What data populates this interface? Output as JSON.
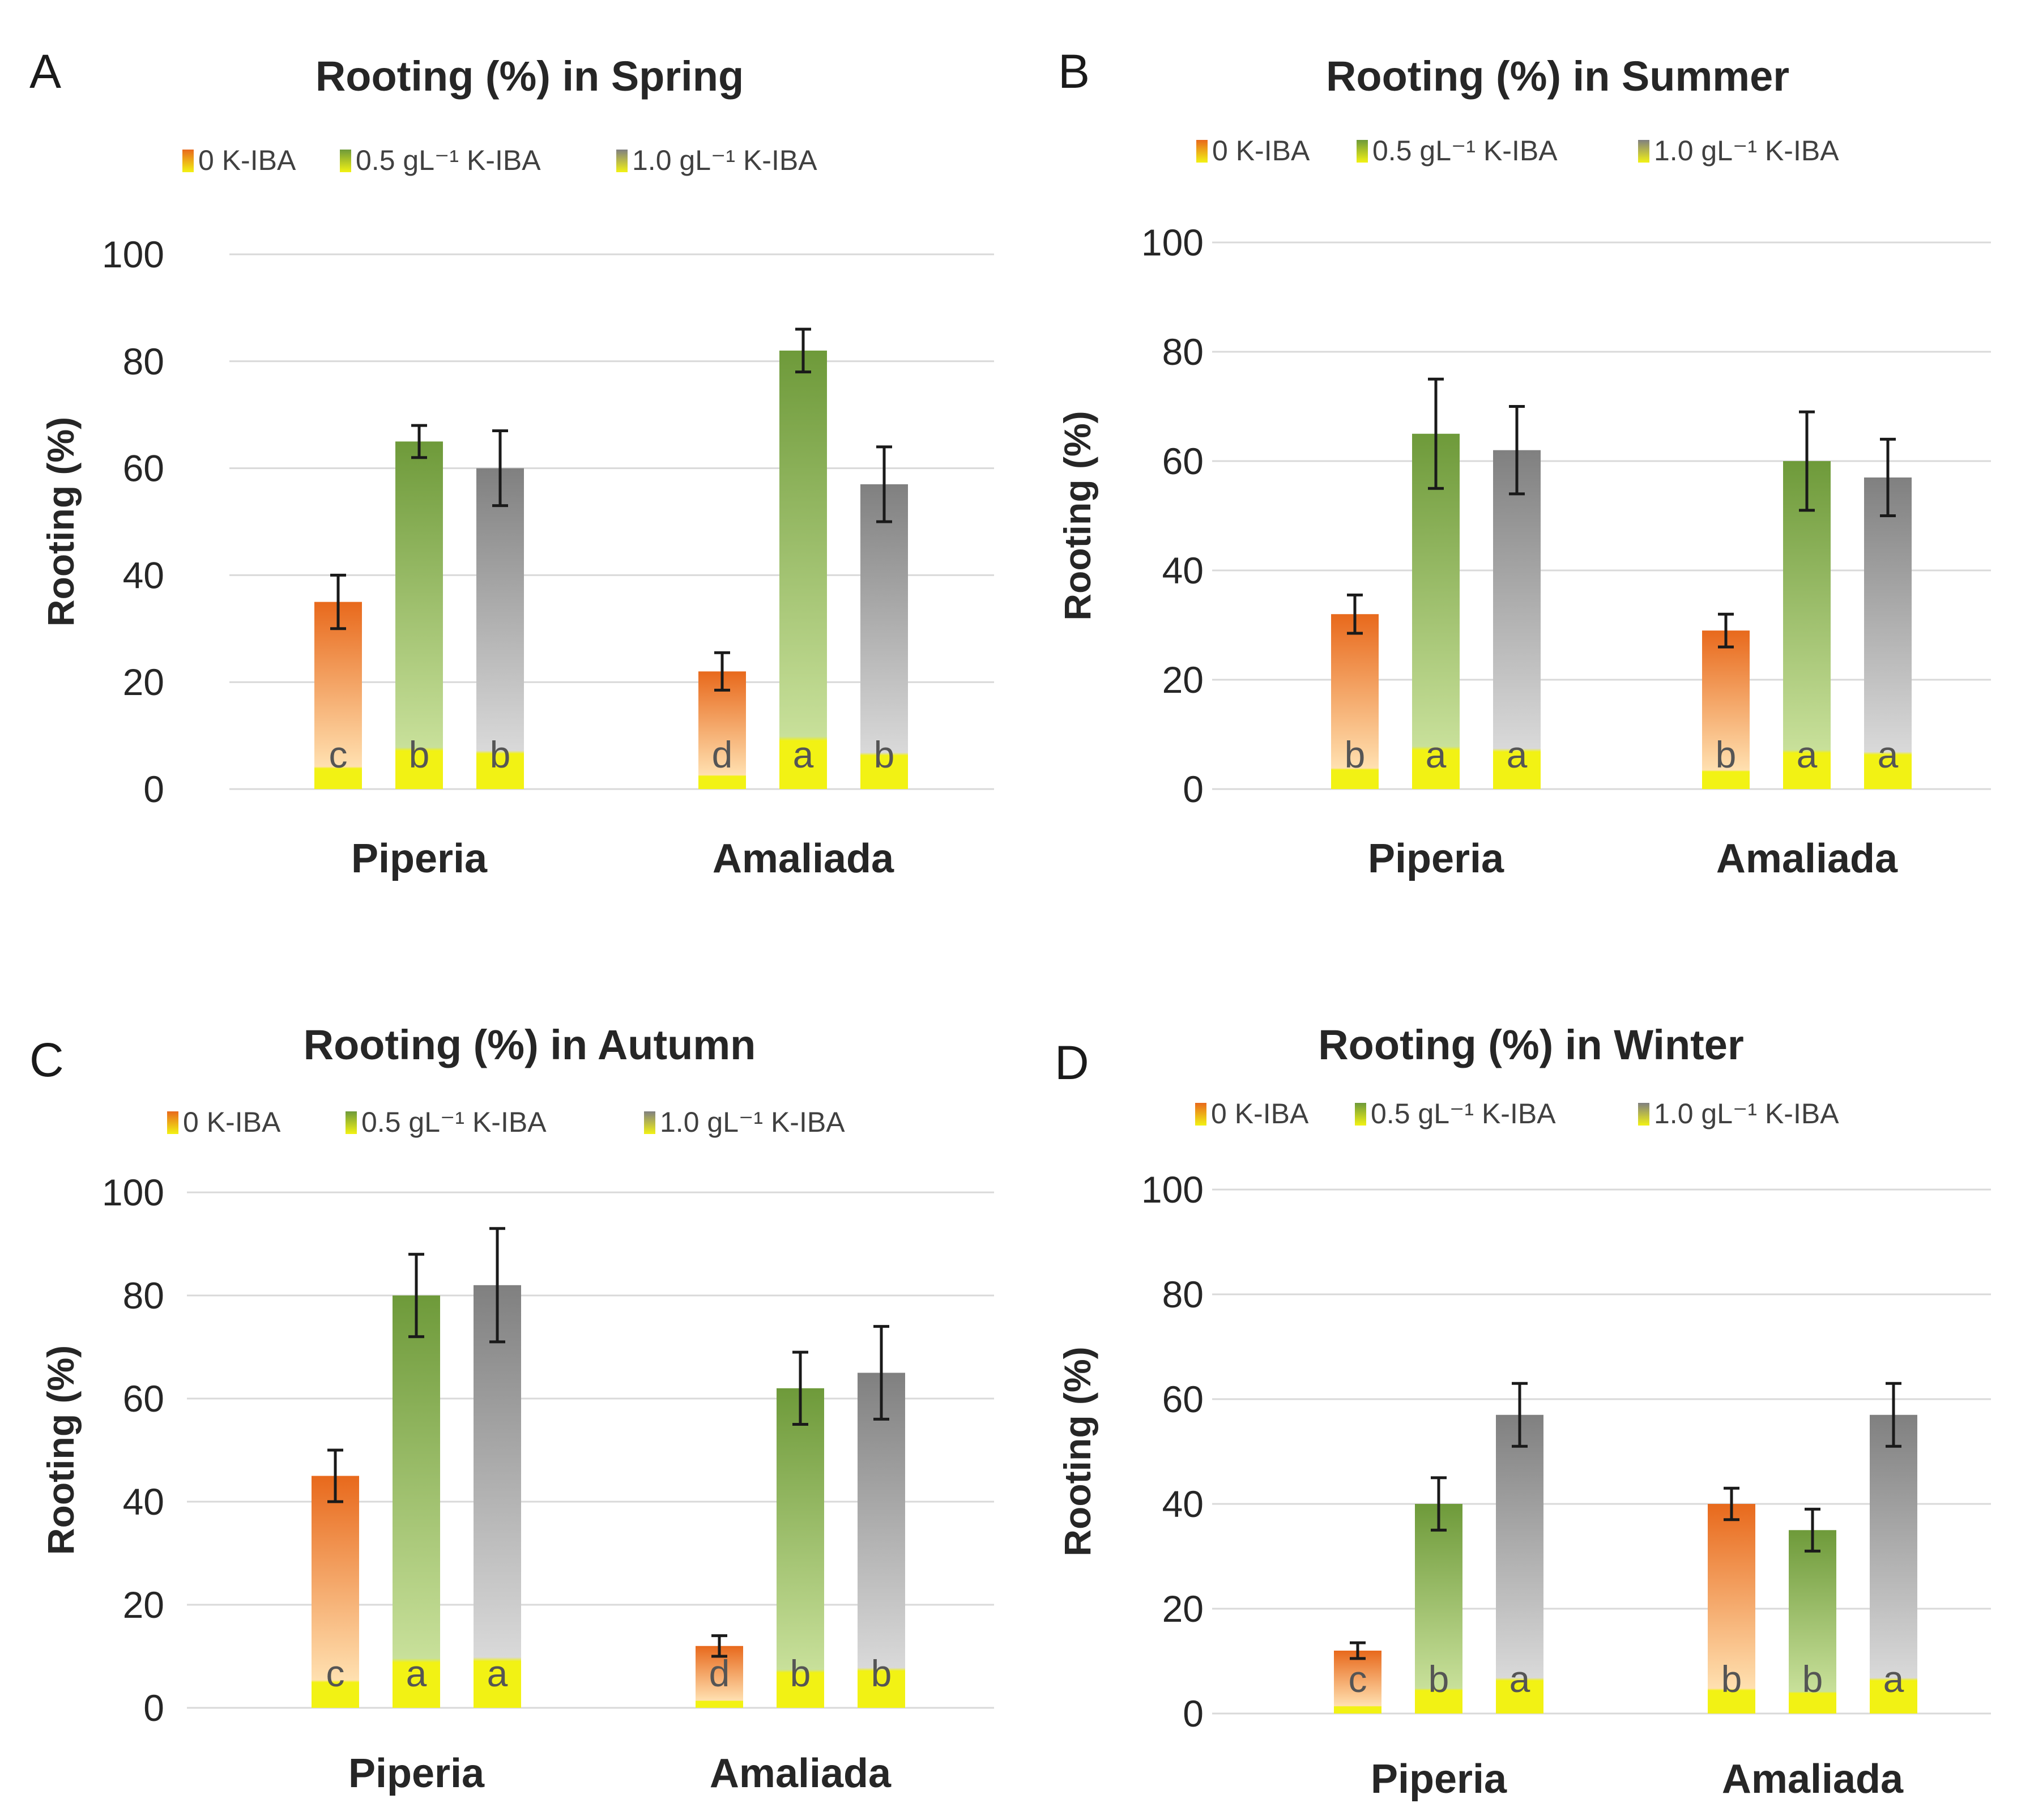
{
  "colors": {
    "orange_top": "#E8691C",
    "orange_bottom": "#FFE0B0",
    "green_top": "#6E9A3A",
    "green_bottom": "#C8E09A",
    "grey_top": "#808080",
    "grey_bottom": "#D9D9D9",
    "base_yellow": "#F2F214",
    "gridline": "#D9D9D9"
  },
  "chart_data": [
    {
      "panel": "A",
      "type": "bar",
      "title": "Rooting (%) in Spring",
      "ylabel": "Rooting (%)",
      "xlabel": "",
      "ylim": [
        0,
        100
      ],
      "yticks": [
        "0",
        "20",
        "40",
        "60",
        "80",
        "100"
      ],
      "grid": true,
      "legend_position": "top",
      "categories": [
        "Piperia",
        "Amaliada"
      ],
      "series": [
        {
          "name": "0 K-IBA",
          "color": "orange",
          "values": [
            35,
            22
          ],
          "errors": [
            5,
            3.5
          ],
          "letters": [
            "c",
            "d"
          ]
        },
        {
          "name": "0.5 gL⁻¹ K-IBA",
          "color": "green",
          "values": [
            65,
            82
          ],
          "errors": [
            3,
            4
          ],
          "letters": [
            "b",
            "a"
          ]
        },
        {
          "name": "1.0 gL⁻¹ K-IBA",
          "color": "grey",
          "values": [
            60,
            57
          ],
          "errors": [
            7,
            7
          ],
          "letters": [
            "b",
            "b"
          ]
        }
      ]
    },
    {
      "panel": "B",
      "type": "bar",
      "title": "Rooting (%) in Summer",
      "ylabel": "Rooting (%)",
      "xlabel": "",
      "ylim": [
        0,
        100
      ],
      "yticks": [
        "0",
        "20",
        "40",
        "60",
        "80",
        "100"
      ],
      "grid": true,
      "legend_position": "top",
      "categories": [
        "Piperia",
        "Amaliada"
      ],
      "series": [
        {
          "name": "0 K-IBA",
          "color": "orange",
          "values": [
            32,
            29
          ],
          "errors": [
            3.5,
            3
          ],
          "letters": [
            "b",
            "b"
          ]
        },
        {
          "name": "0.5 gL⁻¹ K-IBA",
          "color": "green",
          "values": [
            65,
            60
          ],
          "errors": [
            10,
            9
          ],
          "letters": [
            "a",
            "a"
          ]
        },
        {
          "name": "1.0 gL⁻¹ K-IBA",
          "color": "grey",
          "values": [
            62,
            57
          ],
          "errors": [
            8,
            7
          ],
          "letters": [
            "a",
            "a"
          ]
        }
      ]
    },
    {
      "panel": "C",
      "type": "bar",
      "title": "Rooting (%) in Autumn",
      "ylabel": "Rooting (%)",
      "xlabel": "",
      "ylim": [
        0,
        100
      ],
      "yticks": [
        "0",
        "20",
        "40",
        "60",
        "80",
        "100"
      ],
      "grid": true,
      "legend_position": "top",
      "categories": [
        "Piperia",
        "Amaliada"
      ],
      "series": [
        {
          "name": "0 K-IBA",
          "color": "orange",
          "values": [
            45,
            12
          ],
          "errors": [
            5,
            2
          ],
          "letters": [
            "c",
            "d"
          ]
        },
        {
          "name": "0.5 gL⁻¹ K-IBA",
          "color": "green",
          "values": [
            80,
            62
          ],
          "errors": [
            8,
            7
          ],
          "letters": [
            "a",
            "b"
          ]
        },
        {
          "name": "1.0 gL⁻¹ K-IBA",
          "color": "grey",
          "values": [
            82,
            65
          ],
          "errors": [
            11,
            9
          ],
          "letters": [
            "a",
            "b"
          ]
        }
      ]
    },
    {
      "panel": "D",
      "type": "bar",
      "title": "Rooting (%) in Winter",
      "ylabel": "Rooting (%)",
      "xlabel": "",
      "ylim": [
        0,
        100
      ],
      "yticks": [
        "0",
        "20",
        "40",
        "60",
        "80",
        "100"
      ],
      "grid": true,
      "legend_position": "top",
      "categories": [
        "Piperia",
        "Amaliada"
      ],
      "series": [
        {
          "name": "0 K-IBA",
          "color": "orange",
          "values": [
            12,
            40
          ],
          "errors": [
            1.5,
            3
          ],
          "letters": [
            "c",
            "b"
          ]
        },
        {
          "name": "0.5 gL⁻¹ K-IBA",
          "color": "green",
          "values": [
            40,
            35
          ],
          "errors": [
            5,
            4
          ],
          "letters": [
            "b",
            "b"
          ]
        },
        {
          "name": "1.0 gL⁻¹ K-IBA",
          "color": "grey",
          "values": [
            57,
            57
          ],
          "errors": [
            6,
            6
          ],
          "letters": [
            "a",
            "a"
          ]
        }
      ]
    }
  ]
}
